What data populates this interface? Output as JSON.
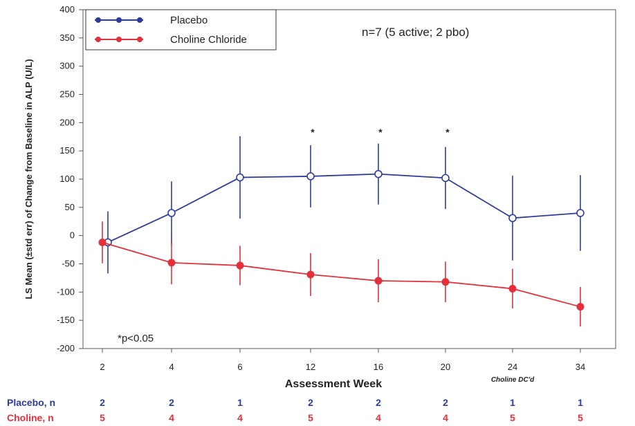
{
  "chart_data": {
    "type": "line",
    "title": "",
    "xlabel": "Assessment Week",
    "ylabel": "LS Mean (±std err) of Change from Baseline in ALP (U/L)",
    "categories": [
      "2",
      "4",
      "6",
      "12",
      "16",
      "20",
      "24",
      "34"
    ],
    "x_sublabel": "Choline DC'd",
    "ylim": [
      -200,
      400
    ],
    "yticks": [
      "400",
      "350",
      "300",
      "250",
      "200",
      "150",
      "100",
      "50",
      "0",
      "-50",
      "-100",
      "-150",
      "-200"
    ],
    "annotation": "n=7 (5 active; 2 pbo)",
    "significance_note": "*p<0.05",
    "significance_marker": "*",
    "significant_categories": [
      "12",
      "16",
      "20"
    ],
    "legend_position": "top-left",
    "grid": false,
    "series": [
      {
        "name": "Placebo",
        "color": "#2e3b9c",
        "values": [
          -12,
          40,
          103,
          105,
          109,
          102,
          31,
          40
        ],
        "errors": [
          55,
          56,
          73,
          55,
          54,
          55,
          75,
          67
        ]
      },
      {
        "name": "Choline Chloride",
        "color": "#e3303a",
        "values": [
          -12,
          -48,
          -53,
          -69,
          -80,
          -82,
          -94,
          -126
        ],
        "errors": [
          37,
          38,
          35,
          38,
          38,
          36,
          35,
          35
        ]
      }
    ],
    "n_rows": [
      {
        "label": "Placebo, n",
        "color": "#2e3b9c",
        "values": [
          "2",
          "2",
          "1",
          "2",
          "2",
          "2",
          "1",
          "1"
        ]
      },
      {
        "label": "Choline, n",
        "color": "#e3303a",
        "values": [
          "5",
          "4",
          "4",
          "5",
          "4",
          "4",
          "5",
          "5"
        ]
      }
    ]
  }
}
